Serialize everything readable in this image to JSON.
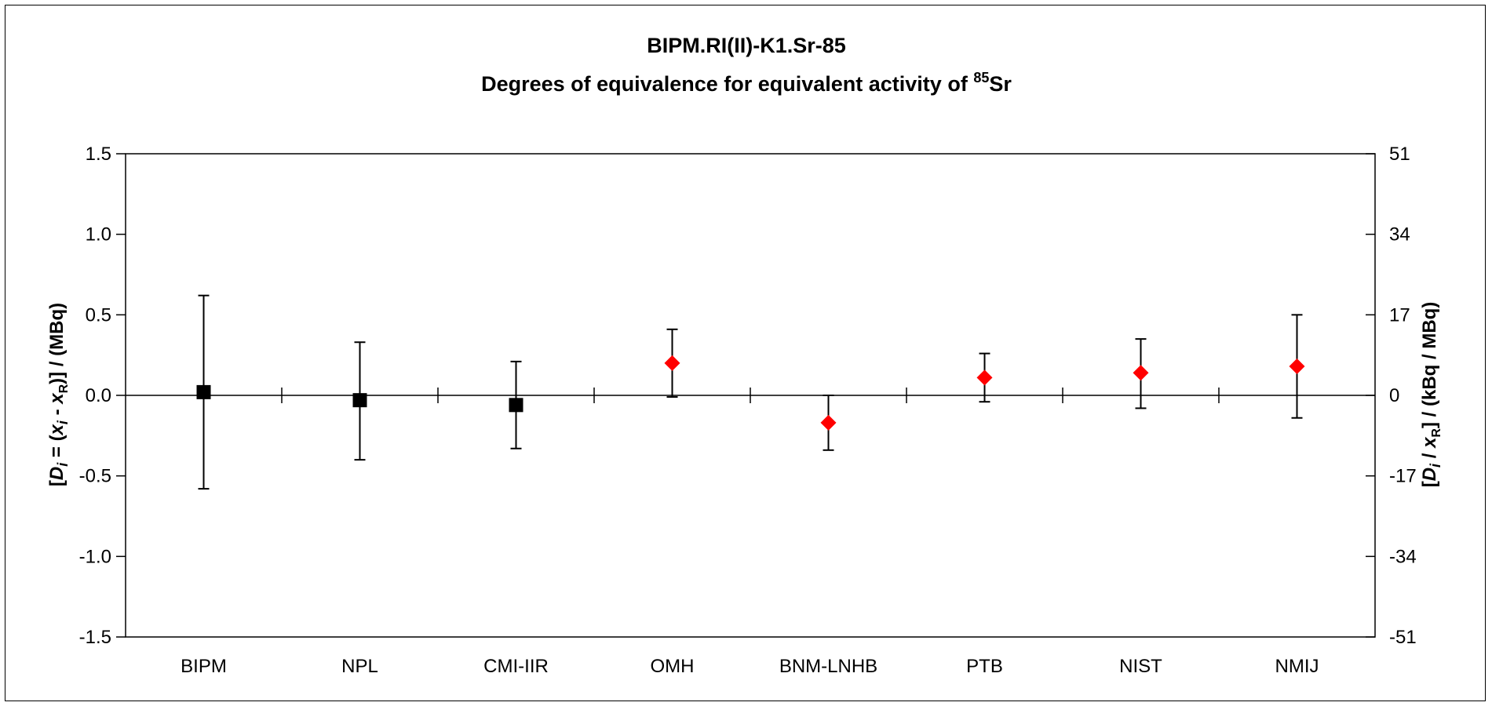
{
  "chart_data": {
    "type": "scatter",
    "title": "BIPM.RI(II)-K1.Sr-85",
    "subtitle": {
      "prefix": "Degrees of equivalence for equivalent activity of ",
      "superscript": "85",
      "suffix": "Sr"
    },
    "categories": [
      "BIPM",
      "NPL",
      "CMI-IIR",
      "OMH",
      "BNM-LNHB",
      "PTB",
      "NIST",
      "NMIJ"
    ],
    "ylim": [
      -1.5,
      1.5
    ],
    "yticks": [
      "1.5",
      "1.0",
      "0.5",
      "0.0",
      "-0.5",
      "-1.0",
      "-1.5"
    ],
    "y2ticks": [
      "51",
      "34",
      "17",
      "0",
      "-17",
      "-34",
      "-51"
    ],
    "ylabel": {
      "p1": "[",
      "D": "D",
      "i1": "i",
      "p2": " = (",
      "x1": "x",
      "i2": "i",
      "p3": " - ",
      "x2": "x",
      "R": "R",
      "p4": ")] / (MBq)"
    },
    "y2label": {
      "p1": "[",
      "D": "D",
      "i1": "i",
      "p2": "  / ",
      "x": "x",
      "R": "R",
      "p3": "] / (kBq / MBq)"
    },
    "series": [
      {
        "color": "#000000",
        "marker": "square",
        "values": [
          0.02,
          -0.03,
          -0.06,
          null,
          null,
          null,
          null,
          null
        ],
        "lower": [
          -0.58,
          -0.4,
          -0.33,
          null,
          null,
          null,
          null,
          null
        ],
        "upper": [
          0.62,
          0.33,
          0.21,
          null,
          null,
          null,
          null,
          null
        ]
      },
      {
        "color": "#ff0000",
        "marker": "diamond",
        "values": [
          null,
          null,
          null,
          0.2,
          -0.17,
          0.11,
          0.14,
          0.18
        ],
        "lower": [
          null,
          null,
          null,
          -0.01,
          -0.34,
          -0.04,
          -0.08,
          -0.14
        ],
        "upper": [
          null,
          null,
          null,
          0.41,
          0.0,
          0.26,
          0.35,
          0.5
        ]
      }
    ],
    "grid": false
  }
}
